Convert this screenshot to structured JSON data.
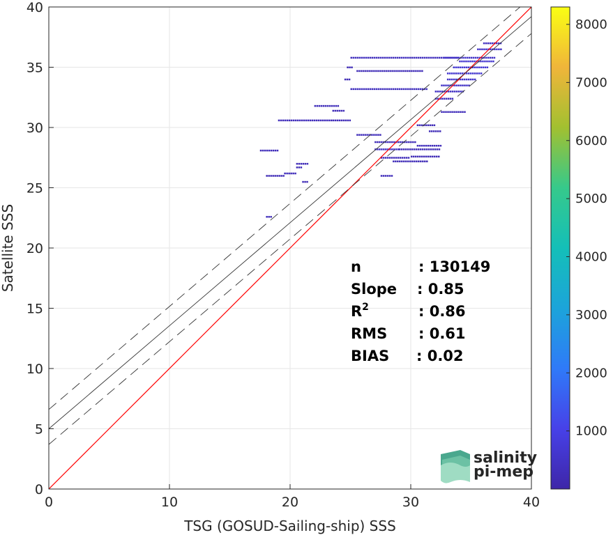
{
  "chart_data": {
    "type": "scatter",
    "subtype": "density-scatter",
    "xlabel": "TSG (GOSUD-Sailing-ship) SSS",
    "ylabel": "Satellite SSS",
    "xlim": [
      0,
      40
    ],
    "ylim": [
      0,
      40
    ],
    "xticks": [
      "0",
      "10",
      "20",
      "30",
      "40"
    ],
    "yticks": [
      "0",
      "5",
      "10",
      "15",
      "20",
      "25",
      "30",
      "35",
      "40"
    ],
    "grid": true,
    "lines": {
      "identity": {
        "x": [
          0,
          40
        ],
        "y": [
          0,
          40
        ],
        "color": "#ff0000"
      },
      "fit": {
        "x": [
          0,
          40
        ],
        "y": [
          5.0,
          39.2
        ],
        "color": "#333333"
      },
      "fit_upper": {
        "x": [
          0,
          40
        ],
        "y": [
          6.6,
          40.8
        ],
        "color": "#333333",
        "dash": true
      },
      "fit_lower": {
        "x": [
          0,
          40
        ],
        "y": [
          3.7,
          37.8
        ],
        "color": "#333333",
        "dash": true
      }
    },
    "density_segments": [
      {
        "x": [
          25.0,
          34.0
        ],
        "y": 35.8,
        "d": 350
      },
      {
        "x": [
          24.7,
          25.2
        ],
        "y": 35.0,
        "d": 250
      },
      {
        "x": [
          25.5,
          31.0
        ],
        "y": 34.7,
        "d": 250
      },
      {
        "x": [
          24.5,
          25.0
        ],
        "y": 34.0,
        "d": 250
      },
      {
        "x": [
          25.0,
          31.5
        ],
        "y": 33.2,
        "d": 350
      },
      {
        "x": [
          22.0,
          24.0
        ],
        "y": 31.8,
        "d": 300
      },
      {
        "x": [
          23.5,
          24.5
        ],
        "y": 31.4,
        "d": 250
      },
      {
        "x": [
          19.0,
          23.5
        ],
        "y": 30.6,
        "d": 300
      },
      {
        "x": [
          23.5,
          25.0
        ],
        "y": 30.6,
        "d": 250
      },
      {
        "x": [
          32.0,
          33.5
        ],
        "y": 32.4,
        "d": 300
      },
      {
        "x": [
          32.5,
          34.5
        ],
        "y": 31.3,
        "d": 300
      },
      {
        "x": [
          30.5,
          32.0
        ],
        "y": 30.2,
        "d": 250
      },
      {
        "x": [
          31.5,
          32.5
        ],
        "y": 29.7,
        "d": 250
      },
      {
        "x": [
          25.5,
          27.5
        ],
        "y": 29.4,
        "d": 300
      },
      {
        "x": [
          27.0,
          30.5
        ],
        "y": 28.8,
        "d": 250
      },
      {
        "x": [
          30.5,
          32.5
        ],
        "y": 28.5,
        "d": 300
      },
      {
        "x": [
          27.0,
          29.0
        ],
        "y": 28.2,
        "d": 450
      },
      {
        "x": [
          29.0,
          32.5
        ],
        "y": 28.2,
        "d": 250
      },
      {
        "x": [
          27.5,
          30.0
        ],
        "y": 27.5,
        "d": 300
      },
      {
        "x": [
          28.5,
          31.5
        ],
        "y": 27.2,
        "d": 250
      },
      {
        "x": [
          30.0,
          32.5
        ],
        "y": 27.6,
        "d": 250
      },
      {
        "x": [
          17.5,
          19.0
        ],
        "y": 28.1,
        "d": 300
      },
      {
        "x": [
          19.5,
          20.5
        ],
        "y": 26.2,
        "d": 300
      },
      {
        "x": [
          18.0,
          19.5
        ],
        "y": 26.0,
        "d": 250
      },
      {
        "x": [
          20.5,
          21.5
        ],
        "y": 27.0,
        "d": 250
      },
      {
        "x": [
          20.5,
          21.0
        ],
        "y": 26.7,
        "d": 250
      },
      {
        "x": [
          21.0,
          21.5
        ],
        "y": 25.5,
        "d": 250
      },
      {
        "x": [
          27.5,
          28.5
        ],
        "y": 26.0,
        "d": 300
      },
      {
        "x": [
          18.0,
          18.5
        ],
        "y": 22.6,
        "d": 300
      },
      {
        "x": [
          32.7,
          37.0
        ],
        "y": 35.8,
        "d": 500
      },
      {
        "x": [
          34.0,
          37.0
        ],
        "y": 35.5,
        "d": 650
      },
      {
        "x": [
          33.5,
          36.5
        ],
        "y": 35.0,
        "d": 700
      },
      {
        "x": [
          33.0,
          36.0
        ],
        "y": 34.5,
        "d": 650
      },
      {
        "x": [
          33.0,
          35.5
        ],
        "y": 34.0,
        "d": 550
      },
      {
        "x": [
          32.5,
          35.0
        ],
        "y": 33.5,
        "d": 500
      },
      {
        "x": [
          32.0,
          34.5
        ],
        "y": 33.0,
        "d": 450
      },
      {
        "x": [
          35.5,
          37.5
        ],
        "y": 36.5,
        "d": 500
      },
      {
        "x": [
          36.0,
          37.5
        ],
        "y": 37.0,
        "d": 400
      }
    ],
    "stats": [
      {
        "label": "n",
        "value": ": 130149"
      },
      {
        "label": "Slope",
        "value": ": 0.85"
      },
      {
        "label": "R",
        "sup": "2",
        "value": ": 0.86"
      },
      {
        "label": "RMS",
        "value": ": 0.61"
      },
      {
        "label": "BIAS",
        "value": ": 0.02"
      }
    ],
    "colorbar": {
      "min": 0,
      "max": 8300,
      "ticks": [
        "1000",
        "2000",
        "3000",
        "4000",
        "5000",
        "6000",
        "7000",
        "8000"
      ],
      "tick_values": [
        1000,
        2000,
        3000,
        4000,
        5000,
        6000,
        7000,
        8000
      ],
      "colors": [
        "#3e26a8",
        "#4741e8",
        "#2f7af8",
        "#1ca4da",
        "#14bfb8",
        "#36c98b",
        "#a2c030",
        "#f0b53a",
        "#faff13"
      ]
    }
  },
  "logo": {
    "line1": "salinity",
    "line2": "pi-mep",
    "color": "#2aa198"
  }
}
